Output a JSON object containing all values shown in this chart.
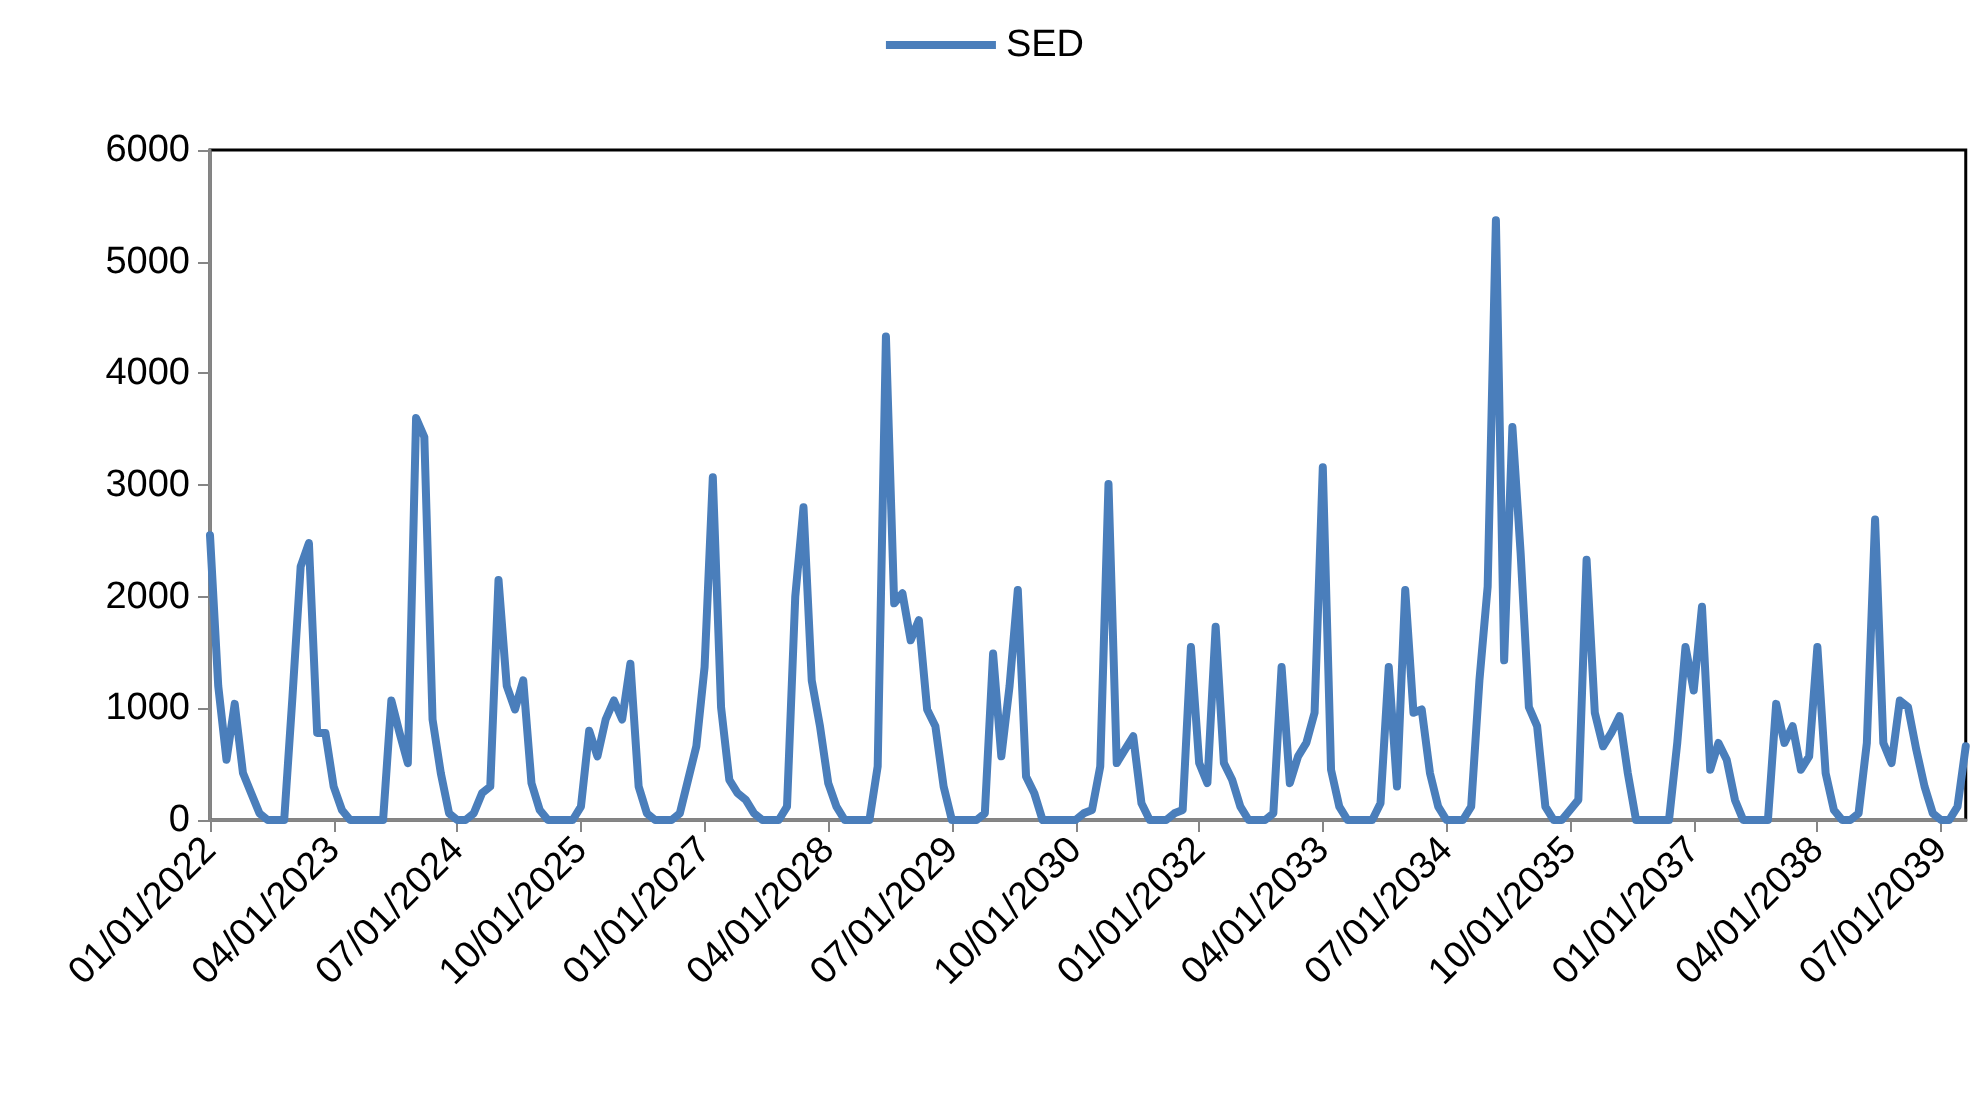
{
  "chart_data": {
    "type": "line",
    "categories": [
      "01/01/2022",
      null,
      null,
      null,
      null,
      null,
      null,
      null,
      null,
      null,
      null,
      null,
      null,
      null,
      null,
      "04/01/2023",
      null,
      null,
      null,
      null,
      null,
      null,
      null,
      null,
      null,
      null,
      null,
      null,
      null,
      null,
      "07/01/2024",
      null,
      null,
      null,
      null,
      null,
      null,
      null,
      null,
      null,
      null,
      null,
      null,
      null,
      null,
      "10/01/2025",
      null,
      null,
      null,
      null,
      null,
      null,
      null,
      null,
      null,
      null,
      null,
      null,
      null,
      null,
      "01/01/2027",
      null,
      null,
      null,
      null,
      null,
      null,
      null,
      null,
      null,
      null,
      null,
      null,
      null,
      null,
      "04/01/2028",
      null,
      null,
      null,
      null,
      null,
      null,
      null,
      null,
      null,
      null,
      null,
      null,
      null,
      null,
      "07/01/2029",
      null,
      null,
      null,
      null,
      null,
      null,
      null,
      null,
      null,
      null,
      null,
      null,
      null,
      null,
      "10/01/2030",
      null,
      null,
      null,
      null,
      null,
      null,
      null,
      null,
      null,
      null,
      null,
      null,
      null,
      null,
      "01/01/2032",
      null,
      null,
      null,
      null,
      null,
      null,
      null,
      null,
      null,
      null,
      null,
      null,
      null,
      null,
      "04/01/2033",
      null,
      null,
      null,
      null,
      null,
      null,
      null,
      null,
      null,
      null,
      null,
      null,
      null,
      null,
      "07/01/2034",
      null,
      null,
      null,
      null,
      null,
      null,
      null,
      null,
      null,
      null,
      null,
      null,
      null,
      null,
      "10/01/2035",
      null,
      null,
      null,
      null,
      null,
      null,
      null,
      null,
      null,
      null,
      null,
      null,
      null,
      null,
      "01/01/2037",
      null,
      null,
      null,
      null,
      null,
      null,
      null,
      null,
      null,
      null,
      null,
      null,
      null,
      null,
      "04/01/2038",
      null,
      null,
      null,
      null,
      null,
      null,
      null,
      null,
      null,
      null,
      null,
      null,
      null,
      null,
      "07/01/2039",
      null,
      null,
      null
    ],
    "series": [
      {
        "name": "SED",
        "color": "#4a7ebb",
        "values": [
          2550,
          1200,
          540,
          1040,
          420,
          240,
          60,
          0,
          0,
          0,
          1100,
          2270,
          2480,
          780,
          780,
          300,
          90,
          0,
          0,
          0,
          0,
          0,
          1070,
          780,
          510,
          3600,
          3430,
          900,
          420,
          60,
          0,
          0,
          60,
          240,
          300,
          2150,
          1200,
          990,
          1250,
          330,
          90,
          0,
          0,
          0,
          0,
          120,
          800,
          570,
          900,
          1070,
          900,
          1400,
          300,
          60,
          0,
          0,
          0,
          60,
          360,
          660,
          1370,
          3070,
          1010,
          360,
          240,
          180,
          60,
          0,
          0,
          0,
          120,
          2000,
          2800,
          1250,
          840,
          330,
          120,
          0,
          0,
          0,
          0,
          480,
          4330,
          1940,
          2030,
          1610,
          1790,
          990,
          840,
          300,
          0,
          0,
          0,
          0,
          60,
          1490,
          570,
          1200,
          2060,
          390,
          240,
          0,
          0,
          0,
          0,
          0,
          60,
          90,
          480,
          3010,
          510,
          630,
          750,
          150,
          0,
          0,
          0,
          60,
          90,
          1550,
          510,
          330,
          1730,
          510,
          360,
          120,
          0,
          0,
          0,
          60,
          1370,
          330,
          570,
          690,
          960,
          3160,
          450,
          120,
          0,
          0,
          0,
          0,
          150,
          1370,
          300,
          2060,
          960,
          990,
          420,
          120,
          0,
          0,
          0,
          120,
          1250,
          2090,
          5370,
          1430,
          3520,
          2390,
          1010,
          840,
          120,
          0,
          0,
          90,
          180,
          2330,
          960,
          660,
          780,
          930,
          420,
          0,
          0,
          0,
          0,
          0,
          690,
          1550,
          1160,
          1910,
          450,
          690,
          540,
          180,
          0,
          0,
          0,
          0,
          1040,
          690,
          840,
          450,
          570,
          1550,
          420,
          90,
          0,
          0,
          60,
          690,
          2690,
          690,
          510,
          1070,
          1010,
          630,
          300,
          60,
          0,
          0,
          120,
          660
        ]
      }
    ],
    "ylim": [
      0,
      6000
    ],
    "yticks": [
      0,
      1000,
      2000,
      3000,
      4000,
      5000,
      6000
    ],
    "grid": false,
    "legend": "top",
    "marker": "none",
    "line_style": "solid"
  }
}
